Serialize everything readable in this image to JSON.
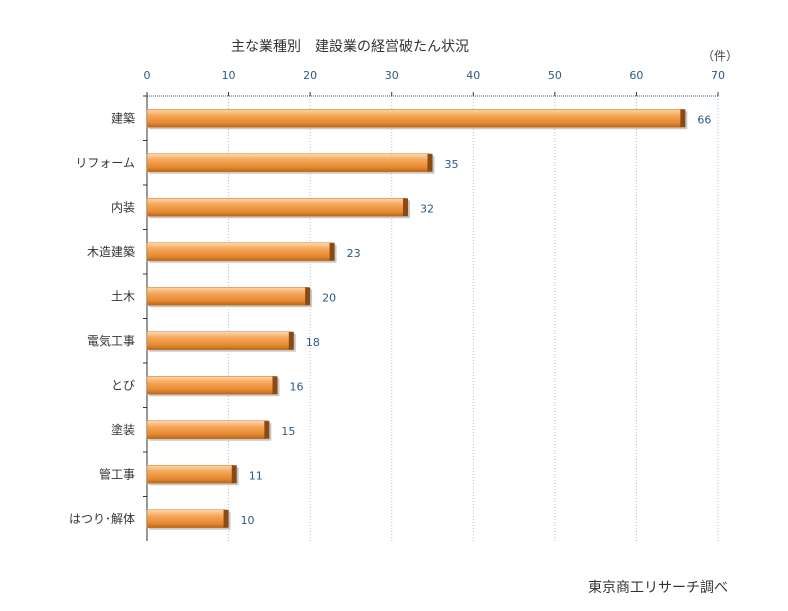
{
  "chart_data": {
    "type": "bar",
    "orientation": "horizontal",
    "title": "主な業種別　建設業の経営破たん状況",
    "unit_label": "（件）",
    "categories": [
      "建築",
      "リフォーム",
      "内装",
      "木造建築",
      "土木",
      "電気工事",
      "とび",
      "塗装",
      "管工事",
      "はつり･解体"
    ],
    "values": [
      66,
      35,
      32,
      23,
      20,
      18,
      16,
      15,
      11,
      10
    ],
    "xlim": [
      0,
      70
    ],
    "x_ticks": [
      0,
      10,
      20,
      30,
      40,
      50,
      60,
      70
    ],
    "axis_position": "top",
    "grid": true,
    "bar_color": "#f2a04b",
    "bar_edge_color": "#8a4a12",
    "grid_color": "#9ec3e0",
    "source": "東京商工リサーチ調べ"
  }
}
